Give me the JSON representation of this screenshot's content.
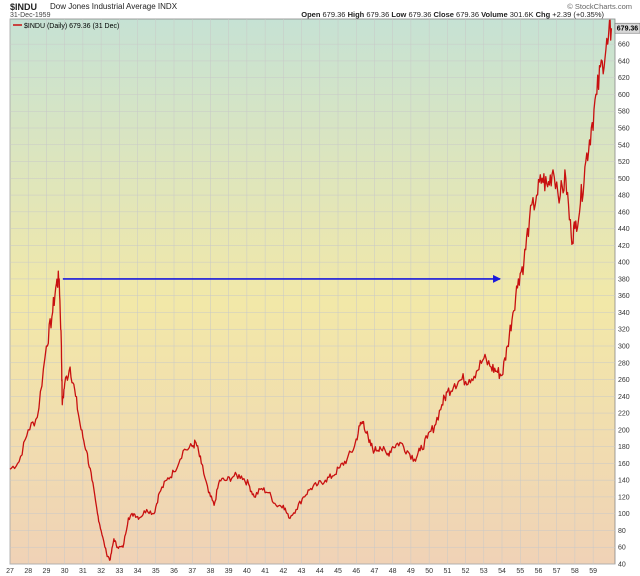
{
  "header": {
    "symbol": "$INDU",
    "description": "Dow Jones Industrial Average INDX",
    "date": "31-Dec-1959",
    "open_label": "Open",
    "open": "679.36",
    "high_label": "High",
    "high": "679.36",
    "low_label": "Low",
    "low": "679.36",
    "close_label": "Close",
    "close": "679.36",
    "volume_label": "Volume",
    "volume": "301.6K",
    "chg_label": "Chg",
    "chg": "+2.39 (+0.35%)",
    "brand": "© StockCharts.com"
  },
  "colors": {
    "line": "#c81010",
    "arrow": "#1a1adc",
    "grid": "#c8c8c8",
    "gradient_top": "#c6e2d4",
    "gradient_mid": "#f2e8a8",
    "gradient_bottom": "#f0d2b6"
  },
  "chart_data": {
    "type": "line",
    "legend": "$INDU (Daily) 679.36 (31 Dec)",
    "legend_placement": "top-left",
    "last_value_label": "679.36",
    "ylim": [
      40,
      690
    ],
    "y_ticks": [
      40,
      60,
      80,
      100,
      120,
      140,
      160,
      180,
      200,
      220,
      240,
      260,
      280,
      300,
      320,
      340,
      360,
      380,
      400,
      420,
      440,
      460,
      480,
      500,
      520,
      540,
      560,
      580,
      600,
      620,
      640,
      660
    ],
    "x_ticks": [
      "27",
      "28",
      "29",
      "30",
      "31",
      "32",
      "33",
      "34",
      "35",
      "36",
      "37",
      "38",
      "39",
      "40",
      "41",
      "42",
      "43",
      "44",
      "45",
      "46",
      "47",
      "48",
      "49",
      "50",
      "51",
      "52",
      "53",
      "54",
      "55",
      "56",
      "57",
      "58",
      "59"
    ],
    "grid": true,
    "series": [
      {
        "x": [
          1927.0,
          1927.5,
          1928.0,
          1928.5,
          1929.0,
          1929.3,
          1929.55,
          1929.7,
          1929.82,
          1929.87,
          1930.0,
          1930.3,
          1930.6,
          1930.9,
          1931.2,
          1931.5,
          1931.8,
          1932.0,
          1932.3,
          1932.5,
          1932.7,
          1932.9,
          1933.2,
          1933.5,
          1933.8,
          1934.1,
          1934.5,
          1934.9,
          1935.2,
          1935.6,
          1936.0,
          1936.5,
          1937.0,
          1937.2,
          1937.5,
          1937.9,
          1938.2,
          1938.5,
          1938.9,
          1939.3,
          1939.7,
          1940.1,
          1940.4,
          1940.8,
          1941.2,
          1941.6,
          1942.0,
          1942.3,
          1942.7,
          1943.1,
          1943.5,
          1943.9,
          1944.3,
          1944.7,
          1945.1,
          1945.5,
          1945.9,
          1946.2,
          1946.4,
          1946.7,
          1947.0,
          1947.3,
          1947.7,
          1948.0,
          1948.4,
          1948.8,
          1949.2,
          1949.5,
          1949.9,
          1950.3,
          1950.7,
          1951.0,
          1951.4,
          1951.8,
          1952.2,
          1952.6,
          1953.0,
          1953.4,
          1953.7,
          1954.0,
          1954.3,
          1954.6,
          1954.9,
          1955.2,
          1955.5,
          1955.9,
          1956.2,
          1956.5,
          1956.8,
          1957.2,
          1957.5,
          1957.8,
          1958.0,
          1958.3,
          1958.6,
          1958.9,
          1959.2,
          1959.5,
          1959.8,
          1960.0
        ],
        "values": [
          153,
          162,
          200,
          215,
          300,
          335,
          375,
          380,
          300,
          230,
          255,
          275,
          240,
          200,
          175,
          140,
          100,
          80,
          52,
          45,
          70,
          60,
          60,
          95,
          100,
          95,
          105,
          100,
          125,
          140,
          150,
          175,
          180,
          185,
          160,
          125,
          110,
          140,
          140,
          145,
          145,
          135,
          120,
          130,
          125,
          110,
          110,
          95,
          105,
          120,
          130,
          135,
          140,
          145,
          155,
          165,
          180,
          205,
          210,
          185,
          175,
          180,
          170,
          180,
          185,
          175,
          165,
          175,
          190,
          205,
          230,
          245,
          255,
          260,
          260,
          270,
          285,
          275,
          270,
          265,
          300,
          340,
          380,
          400,
          450,
          480,
          500,
          490,
          510,
          480,
          500,
          430,
          440,
          470,
          520,
          560,
          600,
          640,
          660,
          679
        ]
      }
    ],
    "annotation_arrow": {
      "from": [
        1929.9,
        380
      ],
      "to": [
        1954.0,
        380
      ]
    }
  }
}
